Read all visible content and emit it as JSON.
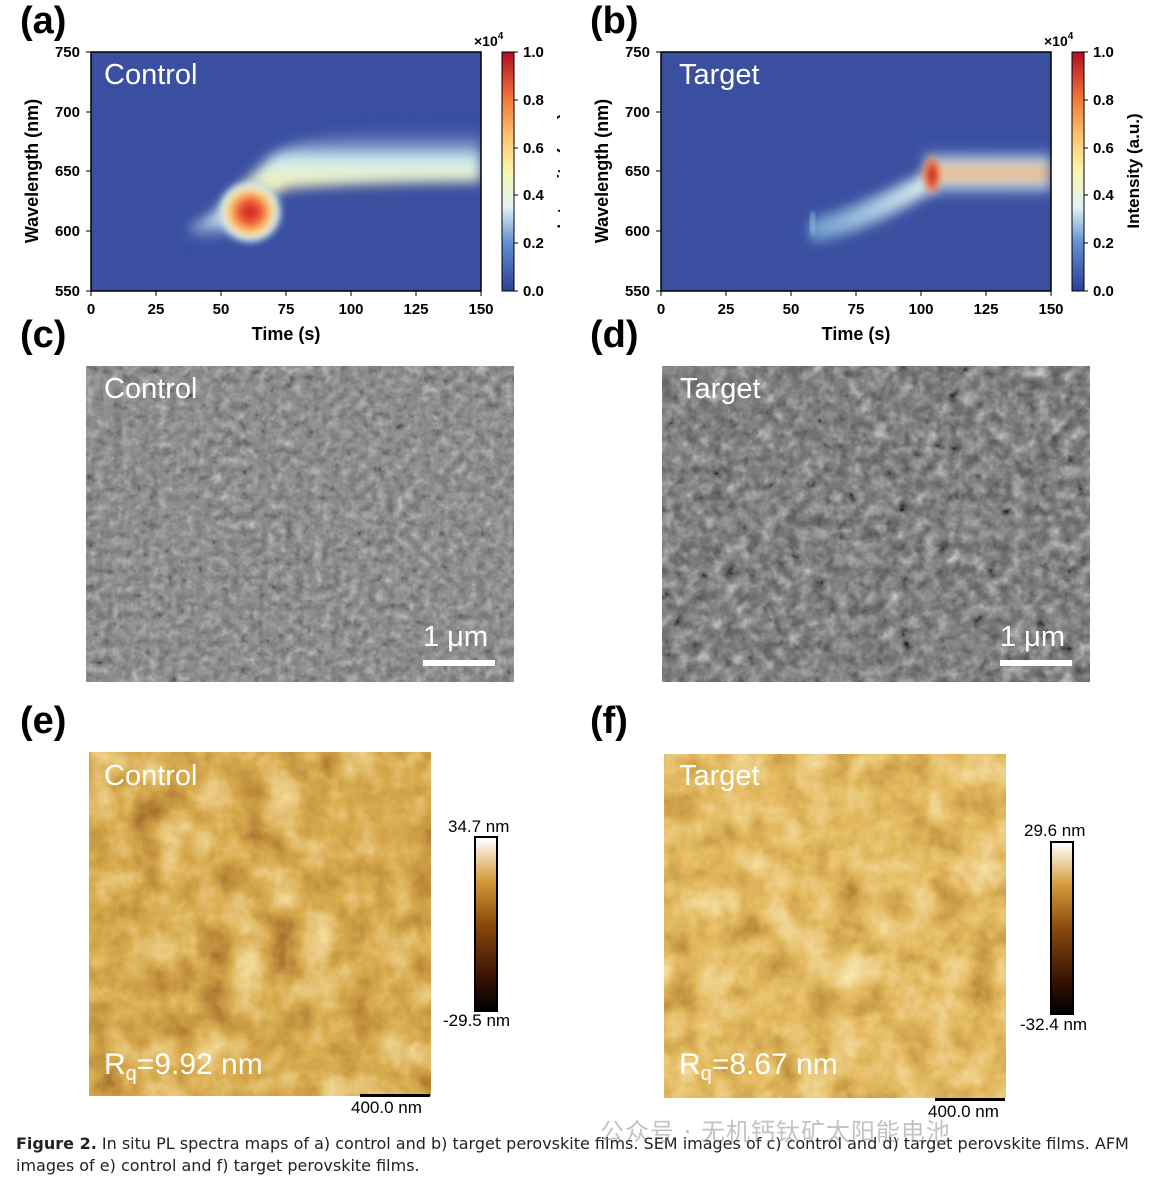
{
  "panels": {
    "a": "(a)",
    "b": "(b)",
    "c": "(c)",
    "d": "(d)",
    "e": "(e)",
    "f": "(f)"
  },
  "labels": {
    "control": "Control",
    "target": "Target"
  },
  "pl_maps": {
    "xlabel": "Time (s)",
    "ylabel": "Wavelength (nm)",
    "cbar_label": "Intensity (a.u.)",
    "cbar_multiplier": "×10",
    "cbar_exponent": "4",
    "x_ticks": [
      "0",
      "25",
      "50",
      "75",
      "100",
      "125",
      "150"
    ],
    "y_ticks": [
      "750",
      "700",
      "650",
      "600",
      "550"
    ],
    "cbar_ticks": [
      "1.0",
      "0.8",
      "0.6",
      "0.4",
      "0.2",
      "0.0"
    ]
  },
  "chart_data": [
    {
      "type": "heatmap",
      "panel": "(a)",
      "annotation": "Control",
      "xlabel": "Time (s)",
      "ylabel": "Wavelength (nm)",
      "xlim": [
        0,
        150
      ],
      "ylim": [
        550,
        750
      ],
      "colorbar": {
        "label": "Intensity (a.u.)",
        "range": [
          0.0,
          1.0
        ],
        "multiplier": "×10^4"
      },
      "features": [
        {
          "description": "nucleation peak",
          "time_s": 62,
          "wavelength_nm": 620,
          "intensity": 1.0
        },
        {
          "description": "steady band",
          "time_s": [
            70,
            150
          ],
          "wavelength_nm": [
            640,
            665
          ],
          "intensity": 0.45
        }
      ]
    },
    {
      "type": "heatmap",
      "panel": "(b)",
      "annotation": "Target",
      "xlabel": "Time (s)",
      "ylabel": "Wavelength (nm)",
      "xlim": [
        0,
        150
      ],
      "ylim": [
        550,
        750
      ],
      "colorbar": {
        "label": "Intensity (a.u.)",
        "range": [
          0.0,
          1.0
        ],
        "multiplier": "×10^4"
      },
      "features": [
        {
          "description": "onset",
          "time_s": [
            55,
            100
          ],
          "wavelength_nm": [
            600,
            640
          ],
          "intensity": 0.25
        },
        {
          "description": "peak",
          "time_s": 104,
          "wavelength_nm": 648,
          "intensity": 1.0
        },
        {
          "description": "steady band",
          "time_s": [
            105,
            150
          ],
          "wavelength_nm": [
            645,
            665
          ],
          "intensity": 0.75
        }
      ]
    }
  ],
  "sem": {
    "scale_text": "1 μm"
  },
  "afm": {
    "control": {
      "max": "34.7 nm",
      "min": "-29.5 nm",
      "rq_prefix": "R",
      "rq_sub": "q",
      "rq_value": "=9.92 nm"
    },
    "target": {
      "max": "29.6 nm",
      "min": "-32.4 nm",
      "rq_prefix": "R",
      "rq_sub": "q",
      "rq_value": "=8.67 nm"
    },
    "scale_text": "400.0 nm"
  },
  "caption": {
    "label": "Figure 2.",
    "text": " In situ PL spectra maps of a) control and b) target perovskite films. SEM images of c) control and d) target perovskite films. AFM images of e) control and f) target perovskite films."
  },
  "watermark": "公众号 · 无机钙钛矿太阳能电池",
  "colors": {
    "heat_bg": "#3a4fa0",
    "heat_mid": "#f5f0a8",
    "heat_peak": "#c8101c",
    "afm_dark": "#3a1a05",
    "afm_mid": "#b36b14",
    "afm_light": "#f5e2b4"
  }
}
